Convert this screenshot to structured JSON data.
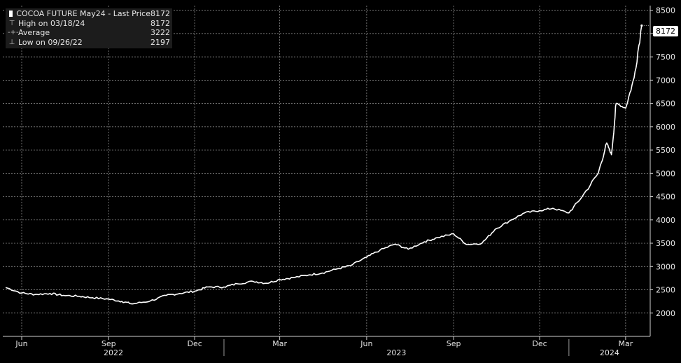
{
  "legend": {
    "title_row": {
      "label": "COCOA FUTURE May24 - Last Price",
      "value": "8172"
    },
    "rows": [
      {
        "label": "High on 03/18/24",
        "value": "8172",
        "icon": "high-marker-icon"
      },
      {
        "label": "Average",
        "value": "3222",
        "icon": "average-marker-icon"
      },
      {
        "label": "Low on 09/26/22",
        "value": "2197",
        "icon": "low-marker-icon"
      }
    ]
  },
  "last_price_badge": "8172",
  "chart_data": {
    "type": "line",
    "series": [
      {
        "name": "COCOA FUTURE May24 - Last Price",
        "color": "#ffffff",
        "x": [
          "2022-05-15",
          "2022-06-01",
          "2022-06-15",
          "2022-07-01",
          "2022-07-15",
          "2022-08-01",
          "2022-08-15",
          "2022-09-01",
          "2022-09-15",
          "2022-09-26",
          "2022-10-15",
          "2022-11-01",
          "2022-11-15",
          "2022-12-01",
          "2022-12-15",
          "2023-01-01",
          "2023-01-15",
          "2023-02-01",
          "2023-02-15",
          "2023-03-01",
          "2023-03-15",
          "2023-04-01",
          "2023-04-15",
          "2023-05-01",
          "2023-05-15",
          "2023-06-01",
          "2023-06-15",
          "2023-07-01",
          "2023-07-15",
          "2023-08-01",
          "2023-08-15",
          "2023-09-01",
          "2023-09-15",
          "2023-10-01",
          "2023-10-15",
          "2023-11-01",
          "2023-11-15",
          "2023-12-01",
          "2023-12-15",
          "2024-01-01",
          "2024-01-15",
          "2024-02-01",
          "2024-02-10",
          "2024-02-15",
          "2024-02-20",
          "2024-03-01",
          "2024-03-10",
          "2024-03-18"
        ],
        "y": [
          2550,
          2430,
          2400,
          2420,
          2380,
          2360,
          2330,
          2300,
          2250,
          2197,
          2260,
          2380,
          2420,
          2470,
          2560,
          2560,
          2630,
          2680,
          2640,
          2720,
          2760,
          2820,
          2860,
          2950,
          3020,
          3200,
          3350,
          3480,
          3370,
          3530,
          3620,
          3700,
          3470,
          3500,
          3800,
          4000,
          4150,
          4200,
          4250,
          4150,
          4500,
          5000,
          5650,
          5400,
          6500,
          6400,
          7050,
          8172
        ]
      }
    ],
    "x_ticks": [
      "Jun",
      "Sep",
      "Dec",
      "Mar",
      "Jun",
      "Sep",
      "Dec",
      "Mar"
    ],
    "year_labels": [
      "2022",
      "2023",
      "2024"
    ],
    "y_ticks": [
      2000,
      2500,
      3000,
      3500,
      4000,
      4500,
      5000,
      5500,
      6000,
      6500,
      7000,
      7500,
      8000,
      8500
    ],
    "ylim": [
      1500,
      8600
    ],
    "xlim": [
      "2022-05-12",
      "2024-03-27"
    ],
    "grid": true,
    "legend_position": "top-left"
  }
}
